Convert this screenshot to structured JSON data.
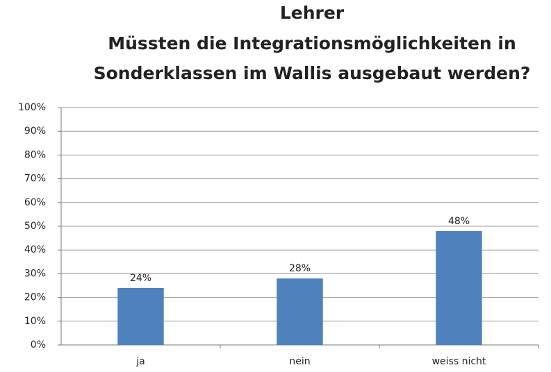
{
  "chart_data": {
    "type": "bar",
    "title": [
      "Lehrer",
      "Müssten die Integrationsmöglichkeiten in",
      "Sonderklassen im Wallis ausgebaut werden?"
    ],
    "categories": [
      "ja",
      "nein",
      "weiss nicht"
    ],
    "values": [
      24,
      28,
      48
    ],
    "value_labels": [
      "24%",
      "28%",
      "48%"
    ],
    "color": "#4f81bd",
    "ylim": [
      0,
      100
    ],
    "yticks": [
      {
        "value": 0,
        "label": "0%"
      },
      {
        "value": 10,
        "label": "10%"
      },
      {
        "value": 20,
        "label": "20%"
      },
      {
        "value": 30,
        "label": "30%"
      },
      {
        "value": 40,
        "label": "40%"
      },
      {
        "value": 50,
        "label": "50%"
      },
      {
        "value": 60,
        "label": "60%"
      },
      {
        "value": 70,
        "label": "70%"
      },
      {
        "value": 80,
        "label": "80%"
      },
      {
        "value": 90,
        "label": "90%"
      },
      {
        "value": 100,
        "label": "100%"
      }
    ],
    "grid": true
  }
}
